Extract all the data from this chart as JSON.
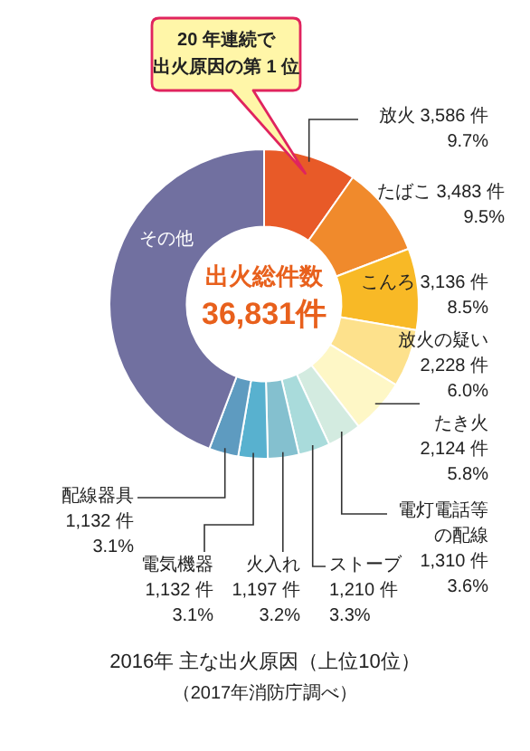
{
  "chart_data": {
    "type": "donut",
    "title": "2016年 主な出火原因（上位10位）",
    "subtitle": "（2017年消防庁調べ）",
    "categories": [
      "放火",
      "たばこ",
      "こんろ",
      "放火の疑い",
      "たき火",
      "電灯電話等の配線",
      "ストーブ",
      "火入れ",
      "電気機器",
      "配線器具",
      "その他"
    ],
    "values": [
      3586,
      3483,
      3136,
      2228,
      2124,
      1310,
      1210,
      1197,
      1132,
      1132,
      16293
    ],
    "value_labels": [
      "3,586 件\n9.7%",
      "3,483 件\n9.5%",
      "3,136 件\n8.5%",
      "2,228 件\n6.0%",
      "2,124 件\n5.8%",
      "1,310 件\n3.6%",
      "1,210 件\n3.3%",
      "1,197 件\n3.2%",
      "1,132 件\n3.1%",
      "1,132 件\n3.1%",
      null
    ],
    "colors": [
      "#e85a28",
      "#f08a2c",
      "#f8b926",
      "#fde18c",
      "#fef7c6",
      "#d3ebe0",
      "#a9dbdb",
      "#84c0cf",
      "#58b1cf",
      "#5e9bc0",
      "#7170a0"
    ],
    "annotations": [
      "出火総件数",
      "36,831件",
      {
        "text": "20 年連続で",
        "x": "放火"
      },
      {
        "text": "出火原因の第 1 位",
        "x": "放火"
      }
    ],
    "legend": false
  }
}
